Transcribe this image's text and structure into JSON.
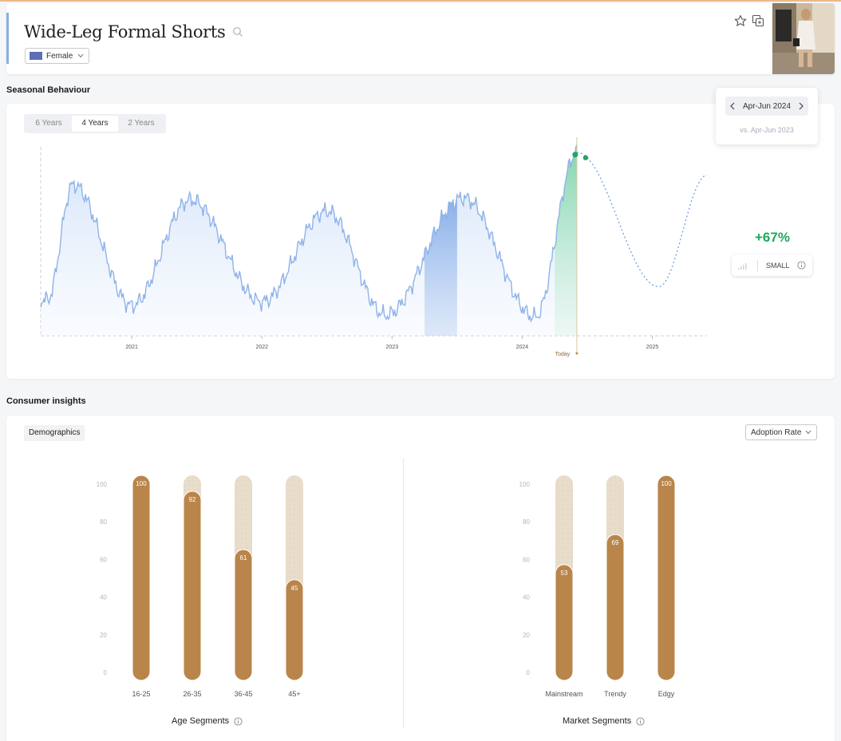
{
  "header": {
    "title": "Wide-Leg Formal Shorts",
    "gender": "Female"
  },
  "seasonal": {
    "section_label": "Seasonal Behaviour",
    "tabs": [
      "6 Years",
      "4 Years",
      "2 Years"
    ],
    "active_tab": "4 Years",
    "period": "Apr-Jun 2024",
    "period_compare": "vs. Apr-Jun 2023",
    "growth": "+67%",
    "size_label": "SMALL",
    "today_label": "Today"
  },
  "consumer": {
    "section_label": "Consumer insights",
    "demographics_label": "Demographics",
    "metric": "Adoption Rate",
    "age_title": "Age Segments",
    "market_title": "Market Segments"
  },
  "colors": {
    "accent_brown": "#b9854a",
    "track_beige": "#e8dccb",
    "line_blue": "#8fb3e8",
    "forecast_green": "#21a65d"
  },
  "chart_data": [
    {
      "type": "area",
      "x_ticks": [
        "2021",
        "2022",
        "2023",
        "2024",
        "2025"
      ],
      "x_range": [
        2020.3,
        2025.42
      ],
      "y_range": [
        0,
        100
      ],
      "grid": false,
      "peaks": [
        {
          "year": 2020.55,
          "value": 80
        },
        {
          "year": 2021.45,
          "value": 72
        },
        {
          "year": 2022.5,
          "value": 66
        },
        {
          "year": 2023.55,
          "value": 73
        },
        {
          "year": 2024.42,
          "value": 97
        }
      ],
      "troughs": [
        {
          "year": 2020.35,
          "value": 19
        },
        {
          "year": 2021.0,
          "value": 16
        },
        {
          "year": 2022.0,
          "value": 18
        },
        {
          "year": 2022.95,
          "value": 11
        },
        {
          "year": 2024.1,
          "value": 10
        },
        {
          "year": 2025.05,
          "value": 26
        }
      ],
      "forecast_end": {
        "year": 2025.42,
        "value": 85
      },
      "today": 2024.42,
      "highlight_2023": [
        2023.25,
        2023.5
      ],
      "highlight_2024": [
        2024.25,
        2024.5
      ]
    },
    {
      "type": "bar",
      "title": "Age Segments",
      "categories": [
        "16-25",
        "26-35",
        "36-45",
        "45+"
      ],
      "values": [
        100,
        92,
        61,
        45
      ],
      "y_ticks": [
        0,
        20,
        40,
        60,
        80,
        100
      ],
      "ylim": [
        0,
        100
      ]
    },
    {
      "type": "bar",
      "title": "Market Segments",
      "categories": [
        "Mainstream",
        "Trendy",
        "Edgy"
      ],
      "values": [
        53,
        69,
        100
      ],
      "y_ticks": [
        0,
        20,
        40,
        60,
        80,
        100
      ],
      "ylim": [
        0,
        100
      ]
    }
  ]
}
